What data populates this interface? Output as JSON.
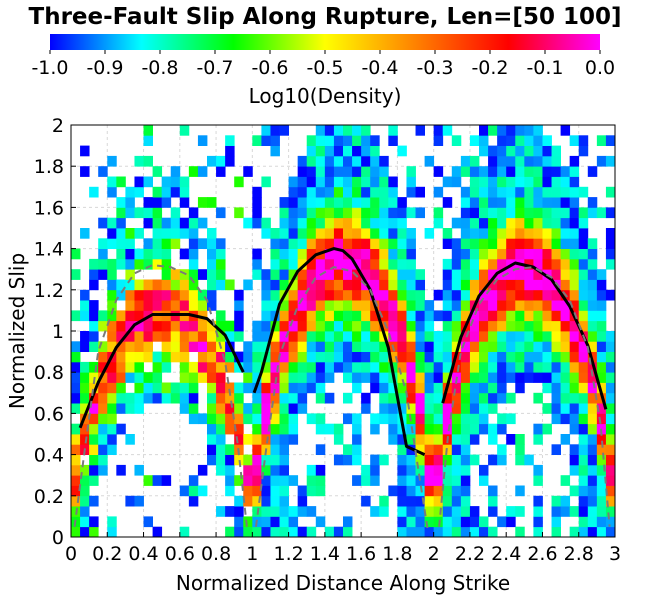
{
  "chart_data": {
    "type": "heatmap",
    "title": "Three-Fault Slip Along Rupture, Len=[50 100]",
    "xlabel": "Normalized Distance Along Strike",
    "ylabel": "Normalized Slip",
    "colorbar_label": "Log10(Density)",
    "colorbar_ticks": [
      "-1.0",
      "-0.9",
      "-0.8",
      "-0.7",
      "-0.6",
      "-0.5",
      "-0.4",
      "-0.3",
      "-0.2",
      "-0.1",
      "0.0"
    ],
    "colorbar_range": [
      -1.0,
      0.0
    ],
    "colormap": [
      "#0000ff",
      "#00ffff",
      "#00ff00",
      "#ffff00",
      "#ff8000",
      "#ff0000",
      "#ff00ff"
    ],
    "xlim": [
      0,
      3
    ],
    "ylim": [
      0,
      2
    ],
    "xticks": [
      "0",
      "0.2",
      "0.4",
      "0.6",
      "0.8",
      "1",
      "1.2",
      "1.4",
      "1.6",
      "1.8",
      "2",
      "2.2",
      "2.4",
      "2.6",
      "2.8",
      "3"
    ],
    "yticks": [
      "0",
      "0.2",
      "0.4",
      "0.6",
      "0.8",
      "1",
      "1.2",
      "1.4",
      "1.6",
      "1.8",
      "2"
    ],
    "grid": true,
    "grid_bins": {
      "x": 60,
      "y": 40
    },
    "segments": [
      {
        "x0": 0,
        "x1": 1,
        "peak": 1.1,
        "skew": 0.8
      },
      {
        "x0": 1,
        "x1": 2,
        "peak": 1.34,
        "skew": 1.0
      },
      {
        "x0": 2,
        "x1": 3,
        "peak": 1.3,
        "skew": 1.0
      }
    ],
    "series": [
      {
        "style": "solid-black",
        "segments": [
          {
            "x": [
              0.05,
              0.15,
              0.25,
              0.35,
              0.45,
              0.55,
              0.65,
              0.75,
              0.85,
              0.95
            ],
            "y": [
              0.53,
              0.75,
              0.92,
              1.03,
              1.08,
              1.08,
              1.08,
              1.06,
              0.98,
              0.8
            ]
          },
          {
            "x": [
              1.01,
              1.05,
              1.15,
              1.25,
              1.35,
              1.45,
              1.5,
              1.55,
              1.65,
              1.75,
              1.85,
              1.95
            ],
            "y": [
              0.7,
              0.8,
              1.13,
              1.29,
              1.37,
              1.4,
              1.39,
              1.35,
              1.2,
              0.92,
              0.44,
              0.4
            ]
          },
          {
            "x": [
              2.05,
              2.15,
              2.25,
              2.35,
              2.45,
              2.55,
              2.65,
              2.75,
              2.85,
              2.95
            ],
            "y": [
              0.65,
              0.97,
              1.17,
              1.28,
              1.33,
              1.31,
              1.25,
              1.12,
              0.93,
              0.62
            ]
          }
        ]
      },
      {
        "style": "dashed-gray",
        "segments": [
          {
            "x": [
              0.02,
              0.08,
              0.15,
              0.25,
              0.35,
              0.45,
              0.55,
              0.65,
              0.75,
              0.85,
              0.92,
              0.97
            ],
            "y": [
              0.05,
              0.45,
              0.9,
              1.15,
              1.28,
              1.32,
              1.31,
              1.27,
              1.15,
              0.85,
              0.45,
              0.05
            ]
          },
          {
            "x": [
              1.02,
              1.08,
              1.15,
              1.25,
              1.35,
              1.45,
              1.55,
              1.65,
              1.75,
              1.85,
              1.92,
              1.97
            ],
            "y": [
              0.05,
              0.45,
              0.88,
              1.12,
              1.26,
              1.31,
              1.29,
              1.2,
              1.0,
              0.7,
              0.3,
              0.02
            ]
          },
          {
            "x": [
              2.03,
              2.08,
              2.15,
              2.25,
              2.35,
              2.45,
              2.55,
              2.65,
              2.75,
              2.85,
              2.92,
              2.97
            ],
            "y": [
              0.05,
              0.5,
              0.9,
              1.13,
              1.25,
              1.3,
              1.31,
              1.26,
              1.15,
              0.92,
              0.55,
              0.05
            ]
          }
        ]
      }
    ]
  }
}
